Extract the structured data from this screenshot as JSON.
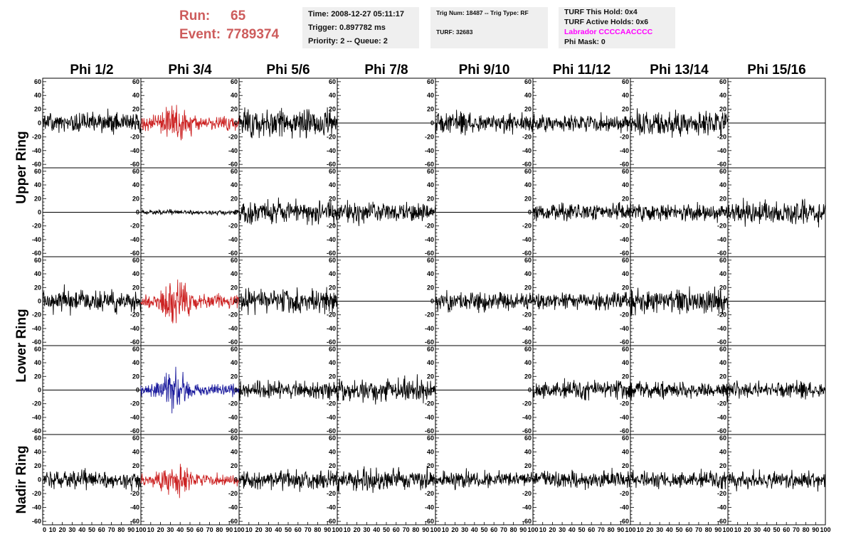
{
  "run_label": "Run:",
  "run_value": "65",
  "event_label": "Event:",
  "event_value": "7789374",
  "info": {
    "time": "Time: 2008-12-27 05:11:17",
    "trigger": "Trigger: 0.897782 ms",
    "priority": "Priority: 2 -- Queue: 2",
    "trig_num": "Trig Num: 18487 -- Trig Type: RF",
    "turf": "TURF: 32683",
    "turf_hold": "TURF This Hold: 0x4",
    "turf_active": "TURF Active Holds: 0x6",
    "labrador": "Labrador CCCCAACCCC",
    "phi_mask": "Phi Mask: 0"
  },
  "colors": {
    "title_red": "#cd5c5c",
    "trace_red": "#cc2222",
    "trace_blue": "#1a1a9c",
    "trace_black": "#000000",
    "magenta": "#ff00ff",
    "box_bg": "#efefef"
  },
  "chart_data": {
    "type": "line",
    "columns": [
      "Phi 1/2",
      "Phi 3/4",
      "Phi 5/6",
      "Phi 7/8",
      "Phi 9/10",
      "Phi 11/12",
      "Phi 13/14",
      "Phi 15/16"
    ],
    "rows": [
      "Upper Ring",
      "Upper Ring",
      "Lower Ring",
      "Lower Ring",
      "Nadir Ring"
    ],
    "row_labels": [
      "Upper Ring",
      "Lower Ring",
      "Nadir Ring"
    ],
    "xlim": [
      0,
      100
    ],
    "ylim": [
      -65,
      65
    ],
    "x_ticks": [
      "0",
      "10",
      "20",
      "30",
      "40",
      "50",
      "60",
      "70",
      "80",
      "90",
      "100"
    ],
    "y_ticks": [
      "60",
      "40",
      "20",
      "0",
      "-20",
      "-40",
      "-60"
    ],
    "samples_per_trace": 260,
    "panels": [
      [
        {
          "style": "black",
          "amp": 12,
          "seed": 1
        },
        {
          "style": "red",
          "amp": 14,
          "seed": 2,
          "burst": true
        },
        {
          "style": "black",
          "amp": 15,
          "seed": 3
        },
        {
          "style": "flat"
        },
        {
          "style": "black",
          "amp": 13,
          "seed": 5
        },
        {
          "style": "black",
          "amp": 10,
          "seed": 6
        },
        {
          "style": "black",
          "amp": 15,
          "seed": 7
        },
        {
          "style": "flat"
        }
      ],
      [
        {
          "style": "flat"
        },
        {
          "style": "black",
          "amp": 3,
          "seed": 9
        },
        {
          "style": "black",
          "amp": 14,
          "seed": 10
        },
        {
          "style": "black",
          "amp": 13,
          "seed": 11
        },
        {
          "style": "flat"
        },
        {
          "style": "black",
          "amp": 11,
          "seed": 13
        },
        {
          "style": "black",
          "amp": 10,
          "seed": 14
        },
        {
          "style": "black",
          "amp": 15,
          "seed": 15
        }
      ],
      [
        {
          "style": "black",
          "amp": 13,
          "seed": 16
        },
        {
          "style": "red",
          "amp": 14,
          "seed": 17,
          "burst": true
        },
        {
          "style": "black",
          "amp": 14,
          "seed": 18
        },
        {
          "style": "flat"
        },
        {
          "style": "black",
          "amp": 11,
          "seed": 20
        },
        {
          "style": "black",
          "amp": 10,
          "seed": 21
        },
        {
          "style": "black",
          "amp": 15,
          "seed": 22
        },
        {
          "style": "flat"
        }
      ],
      [
        {
          "style": "flat"
        },
        {
          "style": "blue",
          "amp": 13,
          "seed": 24,
          "burst": true
        },
        {
          "style": "black",
          "amp": 11,
          "seed": 25
        },
        {
          "style": "black",
          "amp": 14,
          "seed": 26
        },
        {
          "style": "flat"
        },
        {
          "style": "black",
          "amp": 11,
          "seed": 28
        },
        {
          "style": "black",
          "amp": 10,
          "seed": 29
        },
        {
          "style": "black",
          "amp": 10,
          "seed": 30
        }
      ],
      [
        {
          "style": "black",
          "amp": 11,
          "seed": 31
        },
        {
          "style": "red",
          "amp": 12,
          "seed": 32,
          "burst": true
        },
        {
          "style": "black",
          "amp": 11,
          "seed": 33
        },
        {
          "style": "black",
          "amp": 13,
          "seed": 34
        },
        {
          "style": "black",
          "amp": 10,
          "seed": 35
        },
        {
          "style": "black",
          "amp": 11,
          "seed": 36
        },
        {
          "style": "black",
          "amp": 10,
          "seed": 37
        },
        {
          "style": "black",
          "amp": 11,
          "seed": 38
        }
      ]
    ]
  }
}
